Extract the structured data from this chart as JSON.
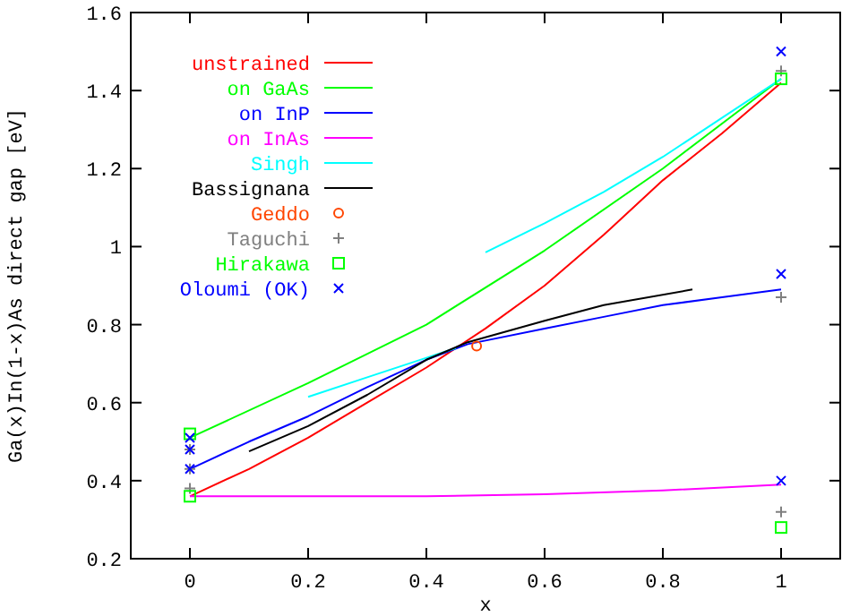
{
  "chart_data": {
    "type": "line",
    "xlabel": "x",
    "ylabel": "Ga(x)In(1-x)As direct gap [eV]",
    "xlim": [
      -0.1,
      1.1
    ],
    "ylim": [
      0.2,
      1.6
    ],
    "xticks": [
      0,
      0.2,
      0.4,
      0.6,
      0.8,
      1
    ],
    "yticks": [
      0.2,
      0.4,
      0.6,
      0.8,
      1,
      1.2,
      1.4,
      1.6
    ],
    "grid": false,
    "legend": "top left",
    "marker": "none",
    "line_style": "solid",
    "series": [
      {
        "name": "unstrained",
        "color": "#ff0000",
        "x": [
          0,
          0.1,
          0.2,
          0.3,
          0.4,
          0.5,
          0.6,
          0.7,
          0.8,
          0.9,
          1
        ],
        "values": [
          0.36,
          0.43,
          0.51,
          0.6,
          0.69,
          0.79,
          0.9,
          1.03,
          1.17,
          1.29,
          1.42
        ]
      },
      {
        "name": "on GaAs",
        "color": "#00ff00",
        "x": [
          0,
          0.2,
          0.4,
          0.6,
          0.8,
          1
        ],
        "values": [
          0.51,
          0.65,
          0.8,
          0.99,
          1.2,
          1.43
        ]
      },
      {
        "name": "on InP",
        "color": "#0000ff",
        "x": [
          0,
          0.1,
          0.2,
          0.3,
          0.4,
          0.47,
          0.6,
          0.7,
          0.8,
          0.9,
          1
        ],
        "values": [
          0.43,
          0.5,
          0.565,
          0.64,
          0.71,
          0.75,
          0.79,
          0.82,
          0.85,
          0.87,
          0.89
        ]
      },
      {
        "name": "on InAs",
        "color": "#ff00ff",
        "x": [
          0,
          0.2,
          0.4,
          0.6,
          0.8,
          1
        ],
        "values": [
          0.36,
          0.36,
          0.36,
          0.365,
          0.375,
          0.39
        ]
      },
      {
        "name": "Singh",
        "color": "#00ffff",
        "x": [
          0.2,
          0.3,
          0.4,
          0.45,
          0.47,
          0.5,
          0.6,
          0.7,
          0.8,
          0.9,
          1
        ],
        "values": [
          0.615,
          0.665,
          0.715,
          0.74,
          null,
          0.985,
          1.06,
          1.14,
          1.23,
          1.33,
          1.43
        ]
      },
      {
        "name": "Bassignana",
        "color": "#000000",
        "x": [
          0.1,
          0.2,
          0.3,
          0.4,
          0.47,
          0.6,
          0.7,
          0.85
        ],
        "values": [
          0.475,
          0.54,
          0.62,
          0.71,
          0.755,
          0.81,
          0.85,
          0.89
        ]
      },
      {
        "name": "Geddo",
        "type": "scatter",
        "marker": "circle",
        "color": "#ff4500",
        "x": [
          0.485
        ],
        "values": [
          0.745
        ]
      },
      {
        "name": "Taguchi",
        "type": "scatter",
        "marker": "cross",
        "color": "#808080",
        "x": [
          0,
          0,
          0,
          1,
          1,
          1
        ],
        "values": [
          0.38,
          0.43,
          0.48,
          0.32,
          0.87,
          1.45
        ]
      },
      {
        "name": "Hirakawa",
        "type": "scatter",
        "marker": "square",
        "color": "#00ff00",
        "x": [
          0,
          0,
          1,
          1
        ],
        "values": [
          0.36,
          0.52,
          0.28,
          1.43
        ]
      },
      {
        "name": "Oloumi (OK)",
        "type": "scatter",
        "marker": "x",
        "color": "#0000ff",
        "x": [
          0,
          0,
          0,
          1,
          1,
          1
        ],
        "values": [
          0.43,
          0.48,
          0.51,
          0.4,
          0.93,
          1.5
        ]
      }
    ]
  }
}
